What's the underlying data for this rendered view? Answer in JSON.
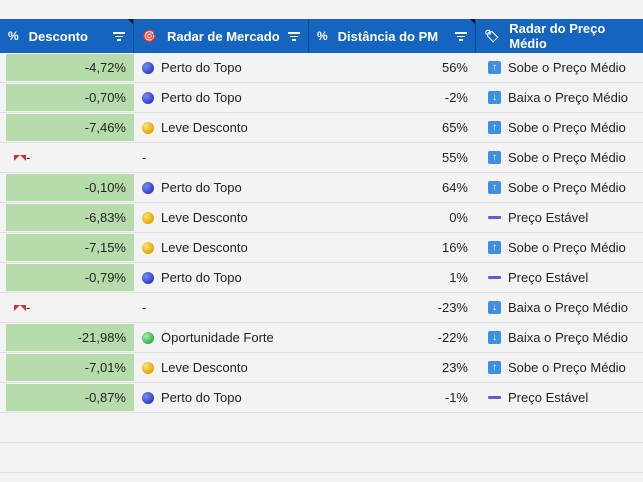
{
  "headers": {
    "desconto": {
      "icon": "%",
      "label": "Desconto"
    },
    "radar_mercado": {
      "icon": "🎯",
      "label": "Radar de Mercado"
    },
    "distancia_pm": {
      "icon": "%",
      "label": "Distância do PM"
    },
    "radar_preco": {
      "icon": "🏷",
      "label": "Radar do Preço Médio"
    }
  },
  "colors": {
    "header_bg": "#1565c0",
    "discount_bar": "#b7dcab",
    "row_bg": "#f3f3f3",
    "arrow_blue": "#3d8fe0",
    "stable_dash": "#7a4fd0",
    "error_mark": "#d32f2f"
  },
  "rows": [
    {
      "desconto": "-4,72%",
      "radar": "Perto do Topo",
      "radar_color": "blue",
      "distancia": "56%",
      "preco": "Sobe o Preço Médio",
      "preco_icon": "up"
    },
    {
      "desconto": "-0,70%",
      "radar": "Perto do Topo",
      "radar_color": "blue",
      "distancia": "-2%",
      "preco": "Baixa o Preço Médio",
      "preco_icon": "down"
    },
    {
      "desconto": "-7,46%",
      "radar": "Leve Desconto",
      "radar_color": "yellow",
      "distancia": "65%",
      "preco": "Sobe o Preço Médio",
      "preco_icon": "up"
    },
    {
      "desconto": "-",
      "radar": "-",
      "radar_color": "",
      "distancia": "55%",
      "preco": "Sobe o Preço Médio",
      "preco_icon": "up",
      "error": true
    },
    {
      "desconto": "-0,10%",
      "radar": "Perto do Topo",
      "radar_color": "blue",
      "distancia": "64%",
      "preco": "Sobe o Preço Médio",
      "preco_icon": "up"
    },
    {
      "desconto": "-6,83%",
      "radar": "Leve Desconto",
      "radar_color": "yellow",
      "distancia": "0%",
      "preco": "Preço Estável",
      "preco_icon": "stable"
    },
    {
      "desconto": "-7,15%",
      "radar": "Leve Desconto",
      "radar_color": "yellow",
      "distancia": "16%",
      "preco": "Sobe o Preço Médio",
      "preco_icon": "up"
    },
    {
      "desconto": "-0,79%",
      "radar": "Perto do Topo",
      "radar_color": "blue",
      "distancia": "1%",
      "preco": "Preço Estável",
      "preco_icon": "stable"
    },
    {
      "desconto": "-",
      "radar": "-",
      "radar_color": "",
      "distancia": "-23%",
      "preco": "Baixa o Preço Médio",
      "preco_icon": "down",
      "error": true
    },
    {
      "desconto": "-21,98%",
      "radar": "Oportunidade Forte",
      "radar_color": "green",
      "distancia": "-22%",
      "preco": "Baixa o Preço Médio",
      "preco_icon": "down"
    },
    {
      "desconto": "-7,01%",
      "radar": "Leve Desconto",
      "radar_color": "yellow",
      "distancia": "23%",
      "preco": "Sobe o Preço Médio",
      "preco_icon": "up"
    },
    {
      "desconto": "-0,87%",
      "radar": "Perto do Topo",
      "radar_color": "blue",
      "distancia": "-1%",
      "preco": "Preço Estável",
      "preco_icon": "stable"
    }
  ]
}
